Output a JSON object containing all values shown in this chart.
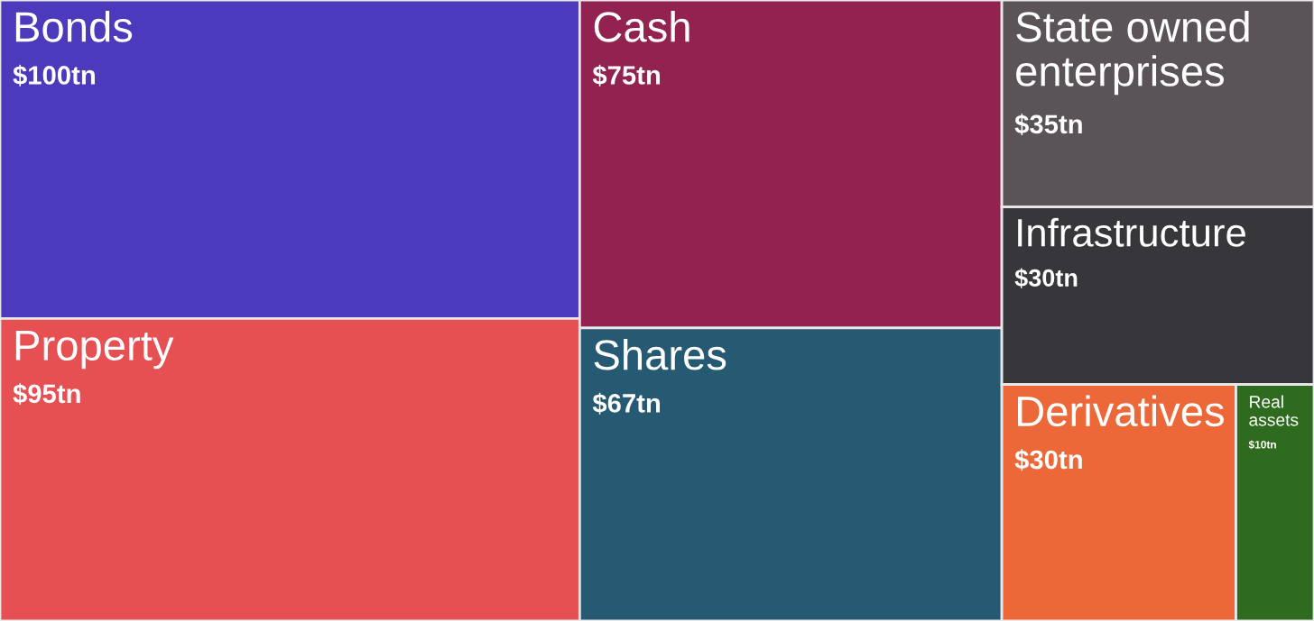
{
  "chart_data": {
    "type": "other",
    "categories": [
      "Bonds",
      "Property",
      "Cash",
      "Shares",
      "State owned enterprises",
      "Infrastructure",
      "Derivatives",
      "Real assets"
    ],
    "values": [
      100,
      95,
      75,
      67,
      35,
      30,
      30,
      10
    ],
    "value_labels": [
      "$100tn",
      "$95tn",
      "$75tn",
      "$67tn",
      "$35tn",
      "$30tn",
      "$30tn",
      "$10tn"
    ],
    "colors": [
      "#4b3abb",
      "#e65052",
      "#922350",
      "#255a72",
      "#5a5358",
      "#36363b",
      "#ec6838",
      "#2e6b1e"
    ]
  }
}
